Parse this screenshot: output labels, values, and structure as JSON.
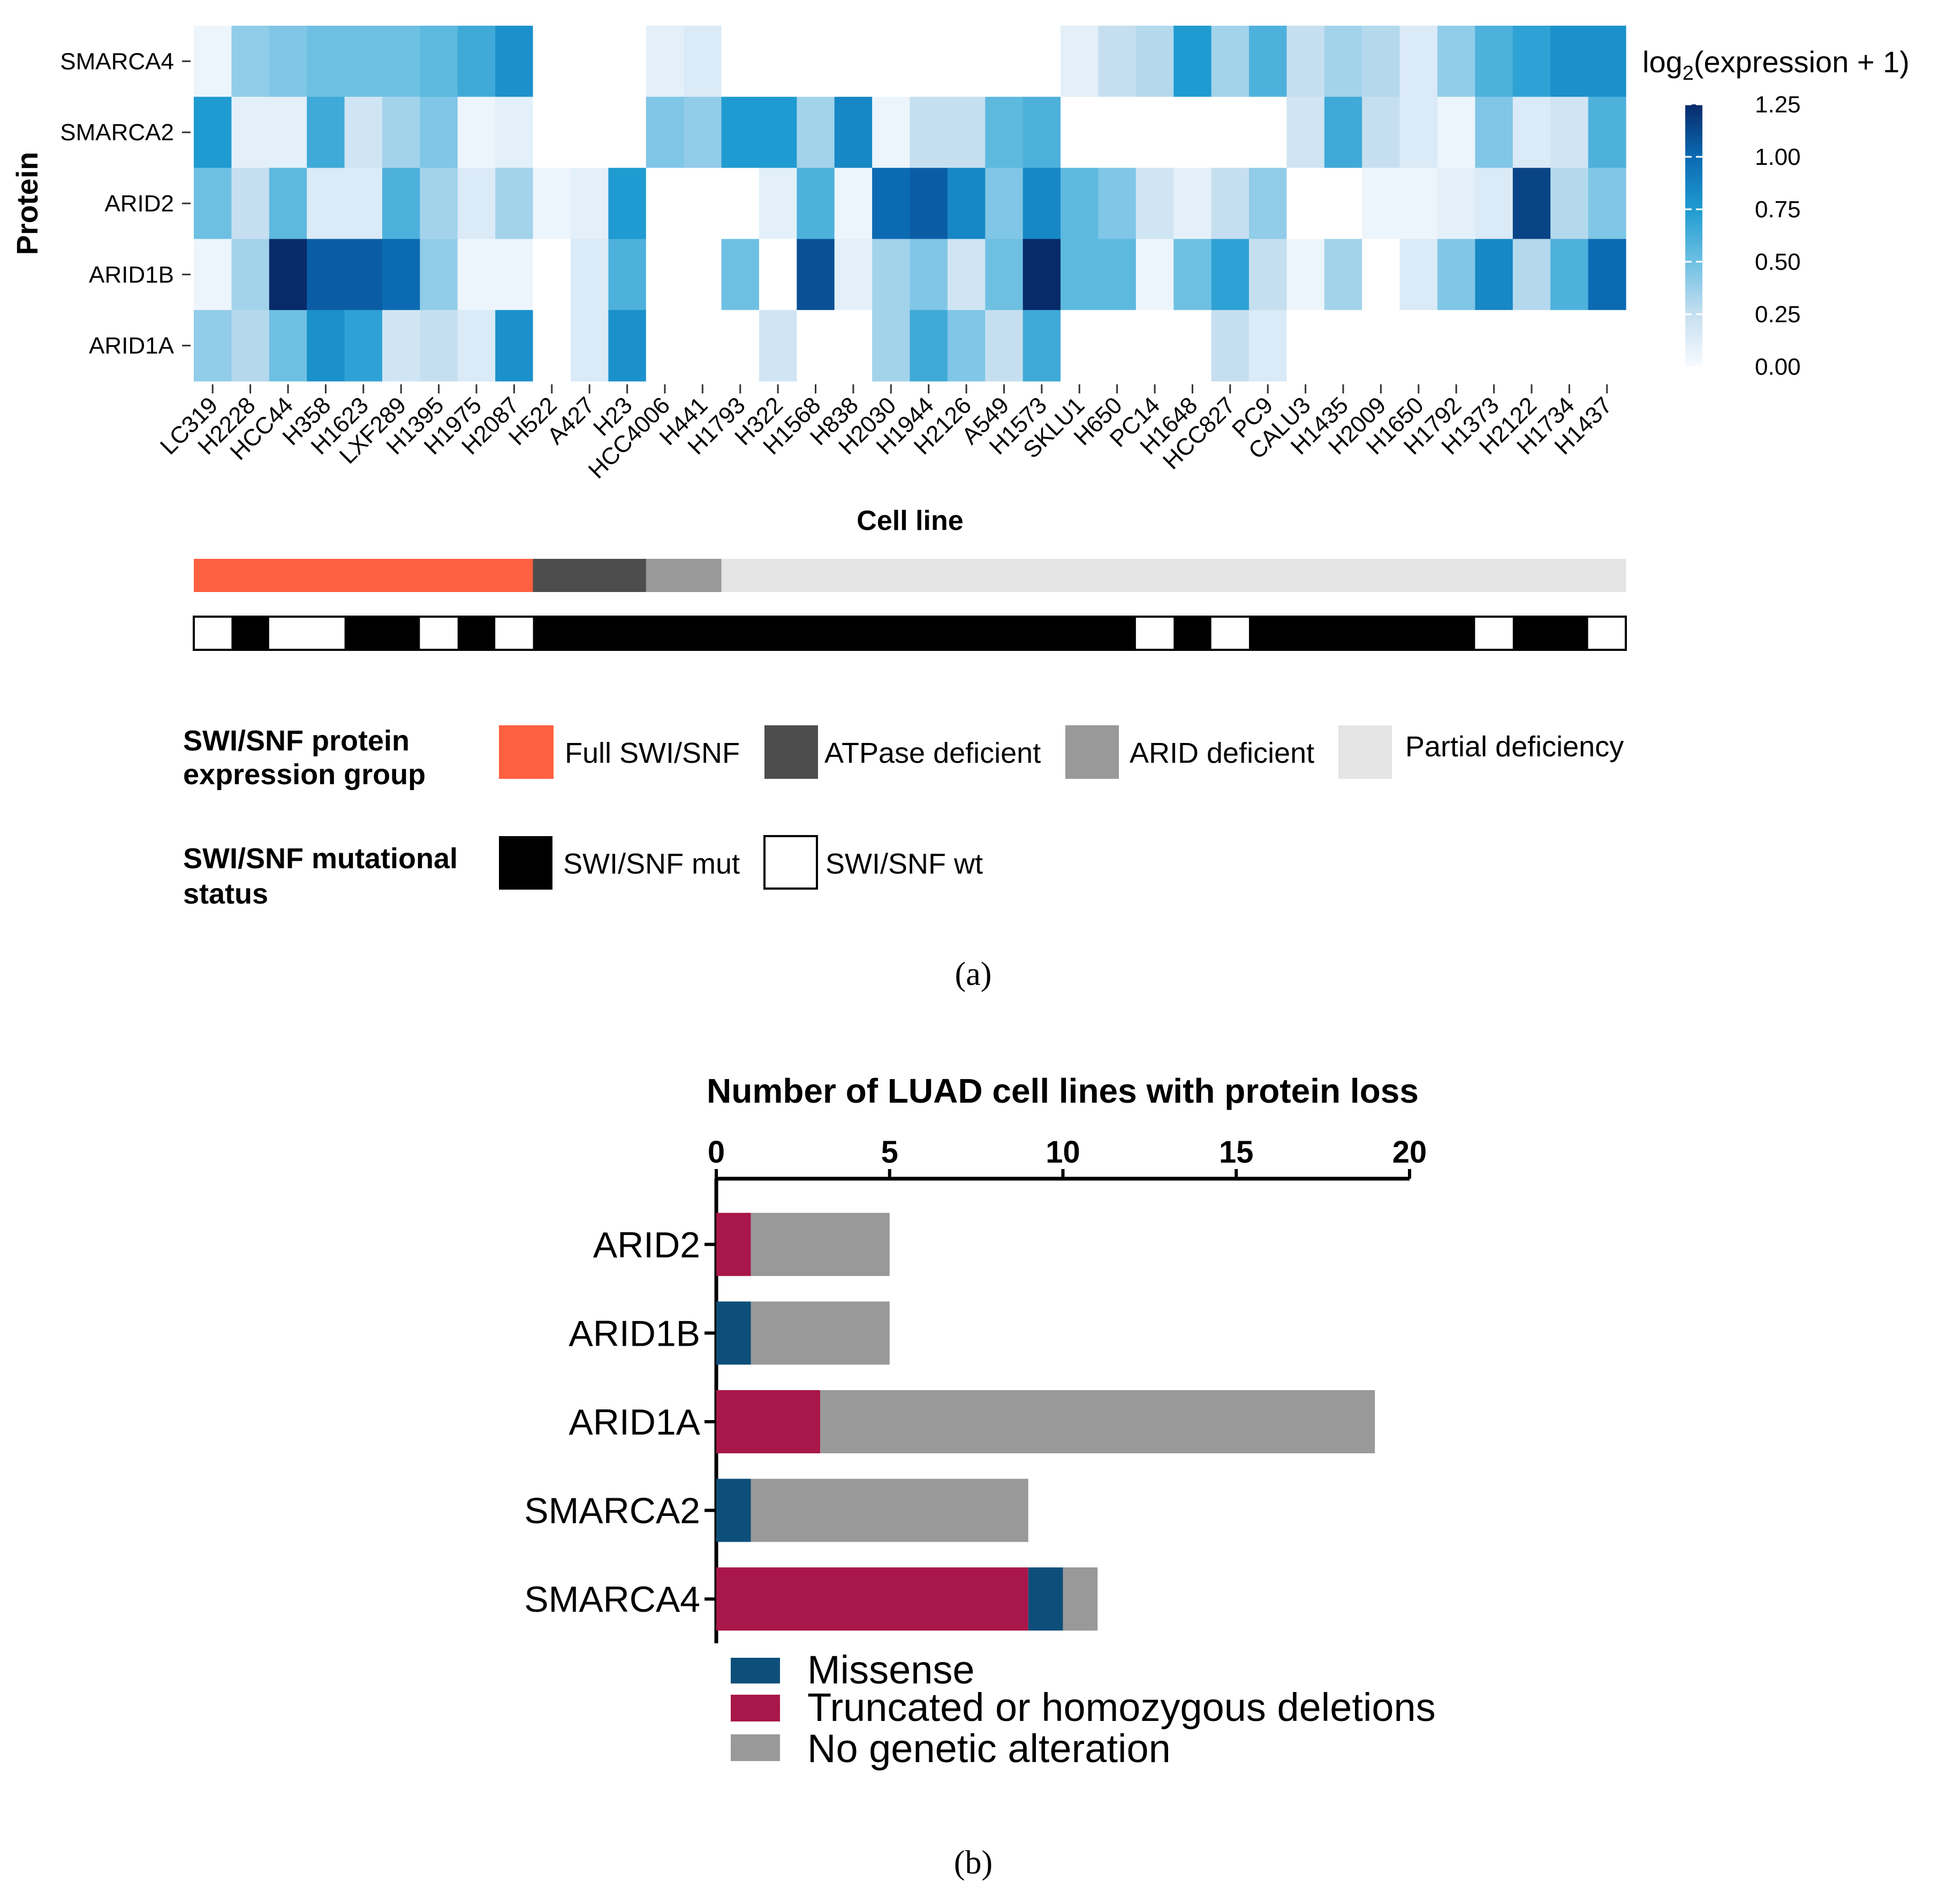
{
  "panel_a": {
    "label": "(a)",
    "heatmap": {
      "ylabel": "Protein",
      "xlabel": "Cell line",
      "legend_title_pre": "log",
      "legend_title_sub": "2",
      "legend_title_post": "(expression + 1)",
      "colorbar_ticks": [
        "1.25",
        "1.00",
        "0.75",
        "0.50",
        "0.25",
        "0.00"
      ]
    },
    "group_legend": {
      "title_line1": "SWI/SNF protein",
      "title_line2": "expression group",
      "items": [
        {
          "label": "Full SWI/SNF",
          "color": "#ff6040"
        },
        {
          "label": "ATPase deficient",
          "color": "#4d4d4d"
        },
        {
          "label": "ARID deficient",
          "color": "#999999"
        },
        {
          "label": "Partial deficiency",
          "color": "#e5e5e5"
        }
      ]
    },
    "mut_legend": {
      "title_line1": "SWI/SNF mutational",
      "title_line2": "status",
      "items": [
        {
          "label": "SWI/SNF mut",
          "color": "#000000"
        },
        {
          "label": "SWI/SNF wt",
          "color": "#ffffff"
        }
      ]
    }
  },
  "panel_b": {
    "label": "(b)",
    "legend": [
      {
        "label": "Missense",
        "color": "#0d4f7a"
      },
      {
        "label": "Truncated or homozygous deletions",
        "color": "#a8164a"
      },
      {
        "label": "No genetic alteration",
        "color": "#999999"
      }
    ]
  },
  "chart_data": [
    {
      "type": "heatmap",
      "rows": [
        "SMARCA4",
        "SMARCA2",
        "ARID2",
        "ARID1B",
        "ARID1A"
      ],
      "columns": [
        "LC319",
        "H2228",
        "HCC44",
        "H358",
        "H1623",
        "LXF289",
        "H1395",
        "H1975",
        "H2087",
        "H522",
        "A427",
        "H23",
        "HCC4006",
        "H441",
        "H1793",
        "H322",
        "H1568",
        "H838",
        "H2030",
        "H1944",
        "H2126",
        "A549",
        "H1573",
        "SKLU1",
        "H650",
        "PC14",
        "H1648",
        "HCC827",
        "PC9",
        "CALU3",
        "H1435",
        "H2009",
        "H1650",
        "H1792",
        "H1373",
        "H2122",
        "H1734",
        "H1437"
      ],
      "values": [
        [
          0.05,
          0.4,
          0.45,
          0.5,
          0.5,
          0.5,
          0.55,
          0.65,
          0.8,
          0,
          0,
          0,
          0.1,
          0.15,
          0,
          0,
          0,
          0,
          0,
          0,
          0,
          0,
          0,
          0.1,
          0.25,
          0.3,
          0.75,
          0.35,
          0.6,
          0.25,
          0.35,
          0.3,
          0.15,
          0.4,
          0.6,
          0.7,
          0.8,
          0.8
        ],
        [
          0.75,
          0.1,
          0.1,
          0.65,
          0.2,
          0.35,
          0.45,
          0.05,
          0.1,
          0,
          0,
          0,
          0.45,
          0.4,
          0.75,
          0.75,
          0.35,
          0.85,
          0.05,
          0.25,
          0.25,
          0.55,
          0.6,
          0,
          0,
          0,
          0,
          0,
          0,
          0.2,
          0.65,
          0.25,
          0.15,
          0.05,
          0.45,
          0.15,
          0.2,
          0.6
        ],
        [
          0.5,
          0.25,
          0.55,
          0.15,
          0.15,
          0.6,
          0.35,
          0.15,
          0.35,
          0.05,
          0.1,
          0.75,
          0,
          0,
          0,
          0.1,
          0.6,
          0.05,
          1.0,
          1.05,
          0.85,
          0.45,
          0.85,
          0.55,
          0.45,
          0.2,
          0.1,
          0.25,
          0.4,
          0,
          0,
          0.05,
          0.05,
          0.1,
          0.15,
          1.15,
          0.3,
          0.45
        ],
        [
          0.05,
          0.35,
          1.25,
          1.05,
          1.05,
          1.0,
          0.4,
          0.05,
          0.05,
          0,
          0.15,
          0.6,
          0,
          0,
          0.5,
          0,
          1.1,
          0.1,
          0.35,
          0.45,
          0.2,
          0.5,
          1.25,
          0.55,
          0.55,
          0.05,
          0.5,
          0.7,
          0.25,
          0.05,
          0.35,
          0,
          0.15,
          0.45,
          0.85,
          0.3,
          0.6,
          1.0
        ],
        [
          0.4,
          0.3,
          0.5,
          0.8,
          0.7,
          0.2,
          0.25,
          0.15,
          0.8,
          0,
          0.15,
          0.8,
          0,
          0,
          0,
          0.2,
          0,
          0,
          0.35,
          0.65,
          0.45,
          0.25,
          0.65,
          0,
          0,
          0,
          0,
          0.25,
          0.15,
          0,
          0,
          0,
          0,
          0,
          0,
          0,
          0,
          0
        ]
      ],
      "colorbar": {
        "min": 0.0,
        "max": 1.25,
        "ticks": [
          0.0,
          0.25,
          0.5,
          0.75,
          1.0,
          1.25
        ]
      },
      "group_bar": {
        "Full SWI/SNF": 9,
        "ATPase deficient": 3,
        "ARID deficient": 2,
        "Partial deficiency": 24
      },
      "mutational_status": [
        "wt",
        "mut",
        "wt",
        "wt",
        "mut",
        "mut",
        "wt",
        "mut",
        "wt",
        "mut",
        "mut",
        "mut",
        "mut",
        "mut",
        "mut",
        "mut",
        "mut",
        "mut",
        "mut",
        "mut",
        "mut",
        "mut",
        "mut",
        "mut",
        "mut",
        "wt",
        "mut",
        "wt",
        "mut",
        "mut",
        "mut",
        "mut",
        "mut",
        "mut",
        "wt",
        "mut",
        "mut",
        "wt"
      ]
    },
    {
      "type": "bar",
      "stacked": true,
      "orientation": "horizontal",
      "title": "Number of LUAD cell lines with protein loss",
      "categories": [
        "ARID2",
        "ARID1B",
        "ARID1A",
        "SMARCA2",
        "SMARCA4"
      ],
      "series": [
        {
          "name": "Truncated or homozygous deletions",
          "values": [
            1,
            0,
            3,
            0,
            9
          ]
        },
        {
          "name": "Missense",
          "values": [
            0,
            1,
            0,
            1,
            1
          ]
        },
        {
          "name": "No genetic alteration",
          "values": [
            4,
            4,
            16,
            8,
            1
          ]
        }
      ],
      "xlim": [
        0,
        20
      ],
      "xticks": [
        "0",
        "5",
        "10",
        "15",
        "20"
      ],
      "axis_position": "top"
    }
  ]
}
